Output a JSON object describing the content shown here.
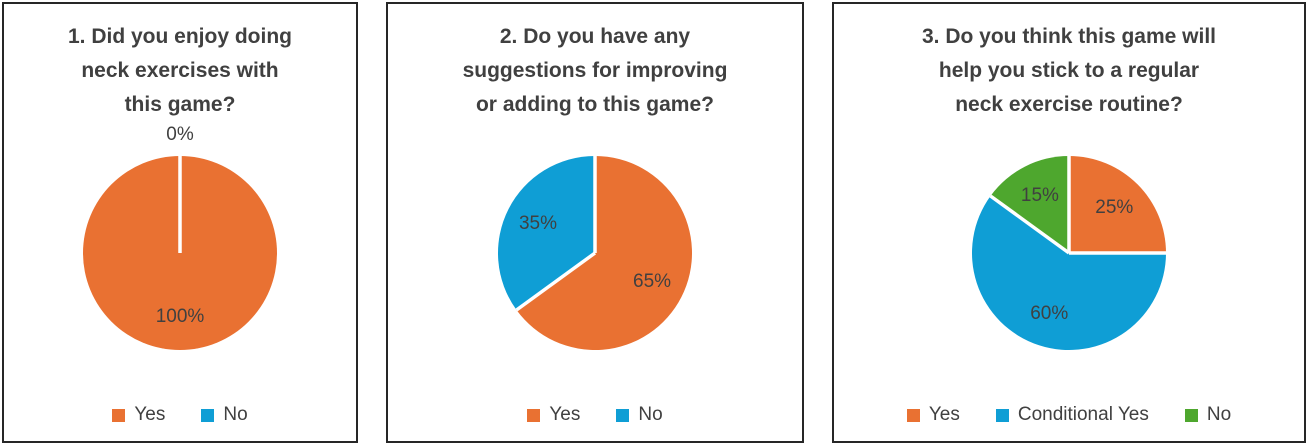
{
  "page": {
    "background_color": "#ffffff",
    "panel_border_color": "#262626",
    "title_color": "#404040",
    "data_label_color": "#404040",
    "legend_text_color": "#404040",
    "slice_separator_color": "#ffffff"
  },
  "chart_data": [
    {
      "type": "pie",
      "title": "1. Did you enjoy doing neck exercises with this game?",
      "title_lines": [
        "1. Did you enjoy doing",
        "neck exercises with",
        "this game?"
      ],
      "start_angle_deg": 0,
      "direction": "clockwise",
      "legend_position": "bottom",
      "slices": [
        {
          "label": "Yes",
          "value": 100,
          "data_label": "100%",
          "color": "#E97132"
        },
        {
          "label": "No",
          "value": 0,
          "data_label": "0%",
          "color": "#0F9ED5"
        }
      ]
    },
    {
      "type": "pie",
      "title": "2. Do you have any suggestions for improving or adding to this game?",
      "title_lines": [
        "2. Do you have any",
        "suggestions for improving",
        "or adding to this game?"
      ],
      "start_angle_deg": 0,
      "direction": "clockwise",
      "legend_position": "bottom",
      "slices": [
        {
          "label": "Yes",
          "value": 65,
          "data_label": "65%",
          "color": "#E97132"
        },
        {
          "label": "No",
          "value": 35,
          "data_label": "35%",
          "color": "#0F9ED5"
        }
      ]
    },
    {
      "type": "pie",
      "title": "3. Do you think this game will help you stick to a regular neck exercise routine?",
      "title_lines": [
        "3. Do you think this game will",
        "help you stick to a regular",
        "neck exercise routine?"
      ],
      "start_angle_deg": 0,
      "direction": "clockwise",
      "legend_position": "bottom",
      "slices": [
        {
          "label": "Yes",
          "value": 25,
          "data_label": "25%",
          "color": "#E97132"
        },
        {
          "label": "Conditional Yes",
          "value": 60,
          "data_label": "60%",
          "color": "#0F9ED5"
        },
        {
          "label": "No",
          "value": 15,
          "data_label": "15%",
          "color": "#4EA72E"
        }
      ]
    }
  ]
}
